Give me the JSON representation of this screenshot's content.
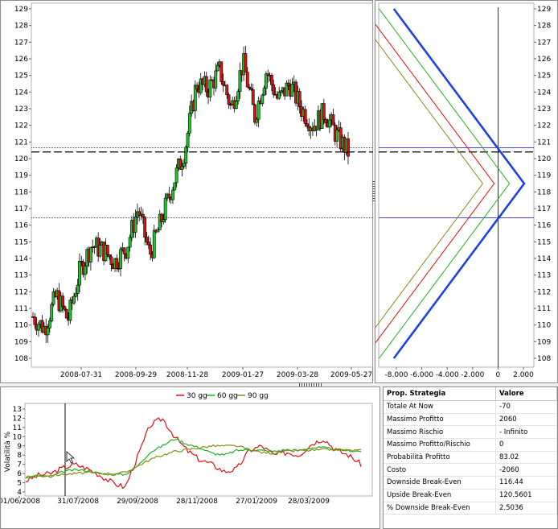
{
  "price_chart": {
    "y_ticks": [
      "129",
      "128",
      "127",
      "126",
      "125",
      "124",
      "123",
      "122",
      "121",
      "120",
      "119",
      "118",
      "117",
      "116",
      "115",
      "114",
      "113",
      "112",
      "111",
      "110",
      "109",
      "108"
    ],
    "x_ticks": [
      "2008-07-31",
      "2008-09-29",
      "2008-11-28",
      "2009-01-27",
      "2009-03-28",
      "2009-05-27"
    ],
    "upper_breakeven": 120.56,
    "lower_breakeven": 116.44,
    "current_price": 120.4,
    "up_color": "#22c32e",
    "down_color": "#e01010"
  },
  "payoff_chart": {
    "x_ticks": [
      "-8.000",
      "-6.000",
      "-4.000",
      "-2.000",
      "0",
      "2.000"
    ],
    "y_ticks": [
      "129",
      "128",
      "127",
      "126",
      "125",
      "124",
      "123",
      "122",
      "121",
      "120",
      "119",
      "118",
      "117",
      "116",
      "115",
      "114",
      "113",
      "112",
      "111",
      "110",
      "109",
      "108"
    ],
    "max_profit": 2060
  },
  "vol_chart": {
    "ylabel": "Volatilità %",
    "y_ticks": [
      "13",
      "12",
      "11",
      "10",
      "9",
      "8",
      "7",
      "6",
      "5",
      "4"
    ],
    "x_ticks": [
      "01/06/2008",
      "31/07/2008",
      "29/09/2008",
      "28/11/2008",
      "27/01/2009",
      "28/03/2009"
    ],
    "legend": [
      {
        "name": "30 gg",
        "color": "#e01010"
      },
      {
        "name": "60 gg",
        "color": "#22b022"
      },
      {
        "name": "90 gg",
        "color": "#8a8a1a"
      }
    ]
  },
  "chart_data": [
    {
      "type": "candlestick",
      "ylim": [
        107.5,
        129
      ],
      "x_ticks": [
        "2008-07-31",
        "2008-09-29",
        "2008-11-28",
        "2009-01-27",
        "2009-03-28",
        "2009-05-27"
      ],
      "approx_close_path": [
        110.5,
        109.8,
        111.8,
        110.3,
        113.2,
        114.8,
        114.5,
        113.8,
        114.6,
        117,
        114.2,
        116.3,
        118.5,
        120.5,
        124.5,
        124.2,
        125.3,
        123,
        125.8,
        122.5,
        125.3,
        123.5,
        124.5,
        123,
        122,
        122.8,
        121.4,
        120.4
      ],
      "hlines": [
        120.56,
        116.44,
        120.4
      ]
    },
    {
      "type": "line",
      "x_range": [
        -9,
        2.5
      ],
      "ylim": [
        107.5,
        129
      ],
      "series": [
        {
          "color": "#2040e0",
          "points": [
            [
              -8.2,
              108
            ],
            [
              2.06,
              118.5
            ],
            [
              -8.2,
              129
            ]
          ]
        }
      ]
    },
    {
      "type": "line",
      "ylabel": "Volatilità %",
      "ylim": [
        3.5,
        13.5
      ],
      "x_ticks": [
        "01/06/2008",
        "31/07/2008",
        "29/09/2008",
        "28/11/2008",
        "27/01/2009",
        "28/03/2009"
      ],
      "series": [
        {
          "name": "30 gg",
          "values": [
            5.2,
            5.8,
            6.0,
            6.6,
            7.0,
            6.5,
            5.8,
            5.0,
            4.5,
            7.8,
            11.2,
            12.0,
            10.0,
            8.5,
            7.5,
            7.0,
            6.2,
            6.5,
            8.5,
            9.0,
            8.0,
            8.3,
            8.0,
            9.2,
            9.8,
            8.5,
            8.0,
            7.0
          ]
        },
        {
          "name": "60 gg",
          "values": [
            5.5,
            5.8,
            5.6,
            6.2,
            6.4,
            6.3,
            6.0,
            5.9,
            5.9,
            6.8,
            8.3,
            9.0,
            9.8,
            9.2,
            8.8,
            8.2,
            8.0,
            8.5,
            8.6,
            8.5,
            8.4,
            8.6,
            8.5,
            8.8,
            8.8,
            8.6,
            8.5,
            8.4
          ]
        },
        {
          "name": "90 gg",
          "values": [
            5.6,
            5.7,
            5.8,
            5.9,
            6.0,
            6.1,
            6.0,
            6.0,
            6.1,
            6.8,
            7.5,
            8.0,
            8.4,
            8.6,
            8.8,
            9.0,
            9.0,
            9.0,
            8.6,
            8.3,
            8.2,
            8.4,
            8.5,
            8.5,
            8.6,
            8.6,
            8.5,
            8.5
          ]
        }
      ]
    }
  ],
  "table": {
    "headers": {
      "col1": "Prop. Strategia",
      "col2": "Valore"
    },
    "rows": [
      {
        "label": "Totale At Now",
        "value": "-70"
      },
      {
        "label": "Massimo Profitto",
        "value": "2060"
      },
      {
        "label": "Massimo Rischio",
        "value": "- Infinito"
      },
      {
        "label": "Massimo Profitto/Rischio",
        "value": "0"
      },
      {
        "label": "Probabilità Profitto",
        "value": "83.02"
      },
      {
        "label": "Costo",
        "value": "-2060"
      },
      {
        "label": "Downside Break-Even",
        "value": "116.44"
      },
      {
        "label": "Upside Break-Even",
        "value": "120.5601"
      },
      {
        "label": "% Downside Break-Even",
        "value": "2.5036"
      }
    ]
  }
}
